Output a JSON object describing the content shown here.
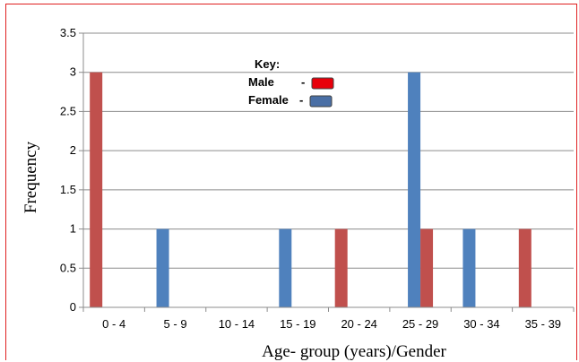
{
  "chart_data": {
    "type": "bar",
    "categories": [
      "0 - 4",
      "5 - 9",
      "10 - 14",
      "15 - 19",
      "20 - 24",
      "25 - 29",
      "30 - 34",
      "35 - 39"
    ],
    "series": [
      {
        "name": "Male",
        "color": "#c0504d",
        "values": [
          3,
          0,
          0,
          0,
          1,
          1,
          0,
          1
        ]
      },
      {
        "name": "Female",
        "color": "#4f81bd",
        "values": [
          0,
          1,
          0,
          1,
          0,
          3,
          1,
          0
        ]
      }
    ],
    "title": "",
    "xlabel": "Age- group (years)/Gender",
    "ylabel": "Frequency",
    "ylim": [
      0,
      3.5
    ],
    "yticks": [
      "0",
      "0.5",
      "1",
      "1.5",
      "2",
      "2.5",
      "3",
      "3.5"
    ],
    "grid": true,
    "legend": {
      "title": "Key:",
      "placement": "top-center",
      "entries": [
        {
          "label": "Male",
          "suffix": "-",
          "swatch_color": "#e8000b"
        },
        {
          "label": "Female",
          "suffix": "-",
          "swatch_color": "#4a6fa5"
        }
      ]
    }
  },
  "colors": {
    "frame_border": "#e02020",
    "gridline": "#8c8c8c"
  }
}
